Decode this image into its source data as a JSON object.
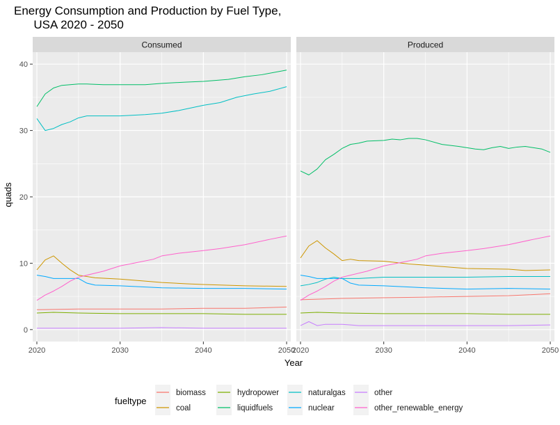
{
  "chart_data": {
    "type": "line",
    "title": "Energy Consumption and Production by Fuel Type,\n      USA 2020 - 2050",
    "xlabel": "Year",
    "ylabel": "quads",
    "xlim": [
      2019.5,
      2050.5
    ],
    "ylim": [
      -1.8,
      41.8
    ],
    "x_ticks": [
      2020,
      2030,
      2040,
      2050
    ],
    "y_ticks": [
      0,
      10,
      20,
      30,
      40
    ],
    "grid": true,
    "legend": {
      "title": "fueltype",
      "placement": "bottom",
      "entries": [
        "biomass",
        "coal",
        "hydropower",
        "liquidfuels",
        "naturalgas",
        "nuclear",
        "other",
        "other_renewable_energy"
      ]
    },
    "colors": {
      "biomass": "#F8766D",
      "coal": "#CD9600",
      "hydropower": "#7CAE00",
      "liquidfuels": "#00BE67",
      "naturalgas": "#00BFC4",
      "nuclear": "#00A9FF",
      "other": "#C77CFF",
      "other_renewable_energy": "#FF61CC"
    },
    "panels": [
      {
        "name": "Consumed",
        "series": [
          {
            "name": "biomass",
            "x": [
              2020,
              2025,
              2030,
              2035,
              2040,
              2045,
              2050
            ],
            "values": [
              3.0,
              3.1,
              3.1,
              3.1,
              3.2,
              3.2,
              3.4
            ]
          },
          {
            "name": "coal",
            "x": [
              2020,
              2021,
              2022,
              2023,
              2024,
              2025,
              2027,
              2030,
              2033,
              2035,
              2038,
              2040,
              2045,
              2050
            ],
            "values": [
              9.0,
              10.5,
              11.1,
              10.0,
              9.0,
              8.2,
              7.8,
              7.6,
              7.3,
              7.1,
              6.9,
              6.8,
              6.6,
              6.5
            ]
          },
          {
            "name": "hydropower",
            "x": [
              2020,
              2022,
              2025,
              2030,
              2040,
              2045,
              2050
            ],
            "values": [
              2.5,
              2.6,
              2.5,
              2.4,
              2.4,
              2.3,
              2.3
            ]
          },
          {
            "name": "liquidfuels",
            "x": [
              2020,
              2021,
              2022,
              2023,
              2024,
              2025,
              2026,
              2028,
              2030,
              2033,
              2035,
              2038,
              2040,
              2043,
              2045,
              2047,
              2050
            ],
            "values": [
              33.6,
              35.5,
              36.4,
              36.8,
              36.9,
              37.0,
              37.0,
              36.9,
              36.9,
              36.9,
              37.1,
              37.3,
              37.4,
              37.7,
              38.1,
              38.4,
              39.1
            ]
          },
          {
            "name": "naturalgas",
            "x": [
              2020,
              2021,
              2022,
              2023,
              2024,
              2025,
              2026,
              2028,
              2030,
              2033,
              2035,
              2037,
              2040,
              2042,
              2044,
              2046,
              2048,
              2050
            ],
            "values": [
              31.8,
              30.0,
              30.3,
              30.9,
              31.3,
              31.9,
              32.2,
              32.2,
              32.2,
              32.4,
              32.6,
              33.0,
              33.8,
              34.2,
              35.0,
              35.5,
              35.9,
              36.6
            ]
          },
          {
            "name": "nuclear",
            "x": [
              2020,
              2021,
              2022,
              2023,
              2024,
              2025,
              2026,
              2027,
              2030,
              2035,
              2040,
              2045,
              2050
            ],
            "values": [
              8.2,
              8.0,
              7.7,
              7.7,
              7.7,
              7.7,
              7.0,
              6.7,
              6.6,
              6.3,
              6.2,
              6.2,
              6.1
            ]
          },
          {
            "name": "other",
            "x": [
              2020,
              2025,
              2030,
              2035,
              2040,
              2045,
              2050
            ],
            "values": [
              0.2,
              0.2,
              0.2,
              0.3,
              0.2,
              0.2,
              0.2
            ]
          },
          {
            "name": "other_renewable_energy",
            "x": [
              2020,
              2021,
              2022,
              2023,
              2024,
              2025,
              2026,
              2028,
              2030,
              2032,
              2034,
              2035,
              2037,
              2040,
              2042,
              2045,
              2048,
              2050
            ],
            "values": [
              4.4,
              5.2,
              5.8,
              6.5,
              7.3,
              7.9,
              8.2,
              8.8,
              9.6,
              10.1,
              10.6,
              11.1,
              11.5,
              11.9,
              12.2,
              12.8,
              13.6,
              14.1
            ]
          }
        ]
      },
      {
        "name": "Produced",
        "series": [
          {
            "name": "biomass",
            "x": [
              2020,
              2025,
              2030,
              2035,
              2040,
              2045,
              2050
            ],
            "values": [
              4.5,
              4.7,
              4.8,
              4.9,
              5.0,
              5.1,
              5.4
            ]
          },
          {
            "name": "coal",
            "x": [
              2020,
              2021,
              2022,
              2023,
              2024,
              2025,
              2026,
              2027,
              2030,
              2033,
              2035,
              2038,
              2040,
              2045,
              2047,
              2050
            ],
            "values": [
              10.8,
              12.6,
              13.4,
              12.3,
              11.4,
              10.4,
              10.6,
              10.4,
              10.3,
              9.9,
              9.7,
              9.4,
              9.2,
              9.1,
              8.9,
              9.0
            ]
          },
          {
            "name": "hydropower",
            "x": [
              2020,
              2022,
              2025,
              2030,
              2040,
              2045,
              2050
            ],
            "values": [
              2.5,
              2.6,
              2.5,
              2.4,
              2.4,
              2.3,
              2.3
            ]
          },
          {
            "name": "liquidfuels",
            "x": [
              2020,
              2021,
              2022,
              2023,
              2024,
              2025,
              2026,
              2027,
              2028,
              2030,
              2031,
              2032,
              2033,
              2034,
              2035,
              2037,
              2039,
              2041,
              2042,
              2043,
              2044,
              2045,
              2046,
              2047,
              2048,
              2049,
              2050
            ],
            "values": [
              23.9,
              23.3,
              24.2,
              25.6,
              26.4,
              27.3,
              27.9,
              28.1,
              28.4,
              28.5,
              28.7,
              28.6,
              28.8,
              28.8,
              28.6,
              27.9,
              27.6,
              27.2,
              27.1,
              27.4,
              27.6,
              27.3,
              27.5,
              27.6,
              27.4,
              27.2,
              26.7
            ]
          },
          {
            "name": "naturalgas",
            "x": [
              2020,
              2021,
              2022,
              2023,
              2024,
              2025,
              2026,
              2027,
              2030,
              2035,
              2040,
              2045,
              2050
            ],
            "values": [
              6.6,
              6.8,
              7.1,
              7.6,
              7.9,
              7.7,
              7.7,
              7.7,
              7.9,
              7.9,
              7.9,
              8.0,
              8.0
            ]
          },
          {
            "name": "nuclear",
            "x": [
              2020,
              2021,
              2022,
              2023,
              2024,
              2025,
              2026,
              2027,
              2030,
              2035,
              2040,
              2045,
              2050
            ],
            "values": [
              8.2,
              8.0,
              7.7,
              7.7,
              7.7,
              7.7,
              7.0,
              6.7,
              6.6,
              6.3,
              6.1,
              6.2,
              6.1
            ]
          },
          {
            "name": "other",
            "x": [
              2020,
              2021,
              2022,
              2023,
              2025,
              2027,
              2030,
              2035,
              2040,
              2045,
              2050
            ],
            "values": [
              0.6,
              1.2,
              0.6,
              0.8,
              0.8,
              0.6,
              0.6,
              0.6,
              0.6,
              0.6,
              0.7
            ]
          },
          {
            "name": "other_renewable_energy",
            "x": [
              2020,
              2021,
              2022,
              2023,
              2024,
              2025,
              2026,
              2028,
              2030,
              2032,
              2034,
              2035,
              2037,
              2040,
              2042,
              2045,
              2048,
              2050
            ],
            "values": [
              4.4,
              5.2,
              5.8,
              6.5,
              7.3,
              7.9,
              8.2,
              8.8,
              9.6,
              10.1,
              10.6,
              11.1,
              11.5,
              11.9,
              12.2,
              12.8,
              13.6,
              14.1
            ]
          }
        ]
      }
    ]
  }
}
